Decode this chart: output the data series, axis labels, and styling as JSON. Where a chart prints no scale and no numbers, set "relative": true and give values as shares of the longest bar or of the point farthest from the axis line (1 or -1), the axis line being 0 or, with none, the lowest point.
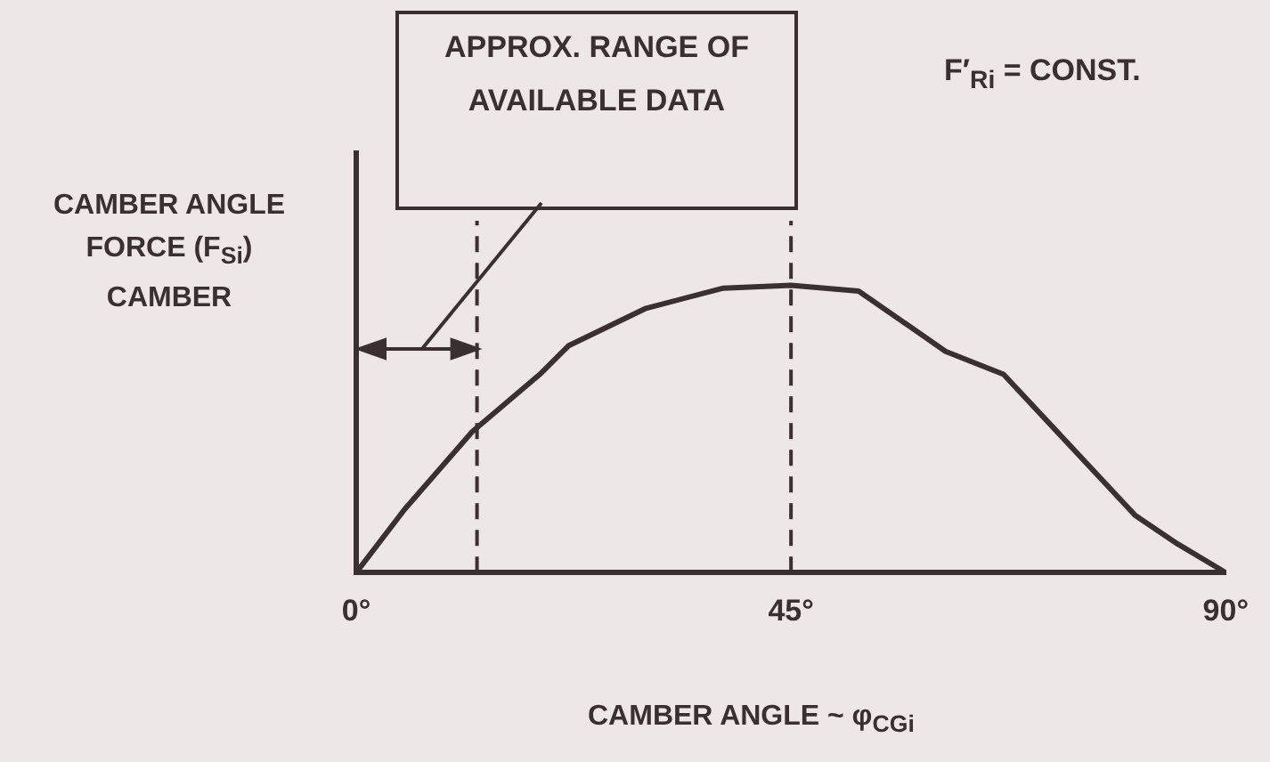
{
  "chart_data": {
    "type": "line",
    "relative": true,
    "xlabel": "CAMBER ANGLE ~ φ$_{CGi}$",
    "ylabel": "CAMBER ANGLE FORCE (F$_{Si}$) CAMBER",
    "annotations": [
      "APPROX. RANGE OF AVAILABLE DATA",
      "F′$_{Ri}$ = CONST."
    ],
    "x": [
      0,
      5,
      12,
      19,
      22,
      30,
      38,
      45,
      52,
      61,
      67,
      72,
      80.6,
      85,
      90
    ],
    "series": [
      {
        "color": "#3a3030",
        "values": [
          0,
          0.22,
          0.49,
          0.69,
          0.79,
          0.92,
          0.99,
          1,
          0.98,
          0.77,
          0.69,
          0.51,
          0.2,
          0.1,
          0
        ]
      }
    ],
    "xlim": [
      0,
      90
    ],
    "xticks": [
      {
        "value": 0,
        "label": "0°"
      },
      {
        "value": 45,
        "label": "45°"
      },
      {
        "value": 90,
        "label": "90°"
      }
    ],
    "ref_lines": [
      {
        "axis": "x",
        "value": 12.5,
        "line_style": "dashed"
      },
      {
        "axis": "x",
        "value": 45,
        "line_style": "dashed"
      }
    ],
    "grid": false,
    "legend": false,
    "marker": "none",
    "line_style": "solid"
  }
}
